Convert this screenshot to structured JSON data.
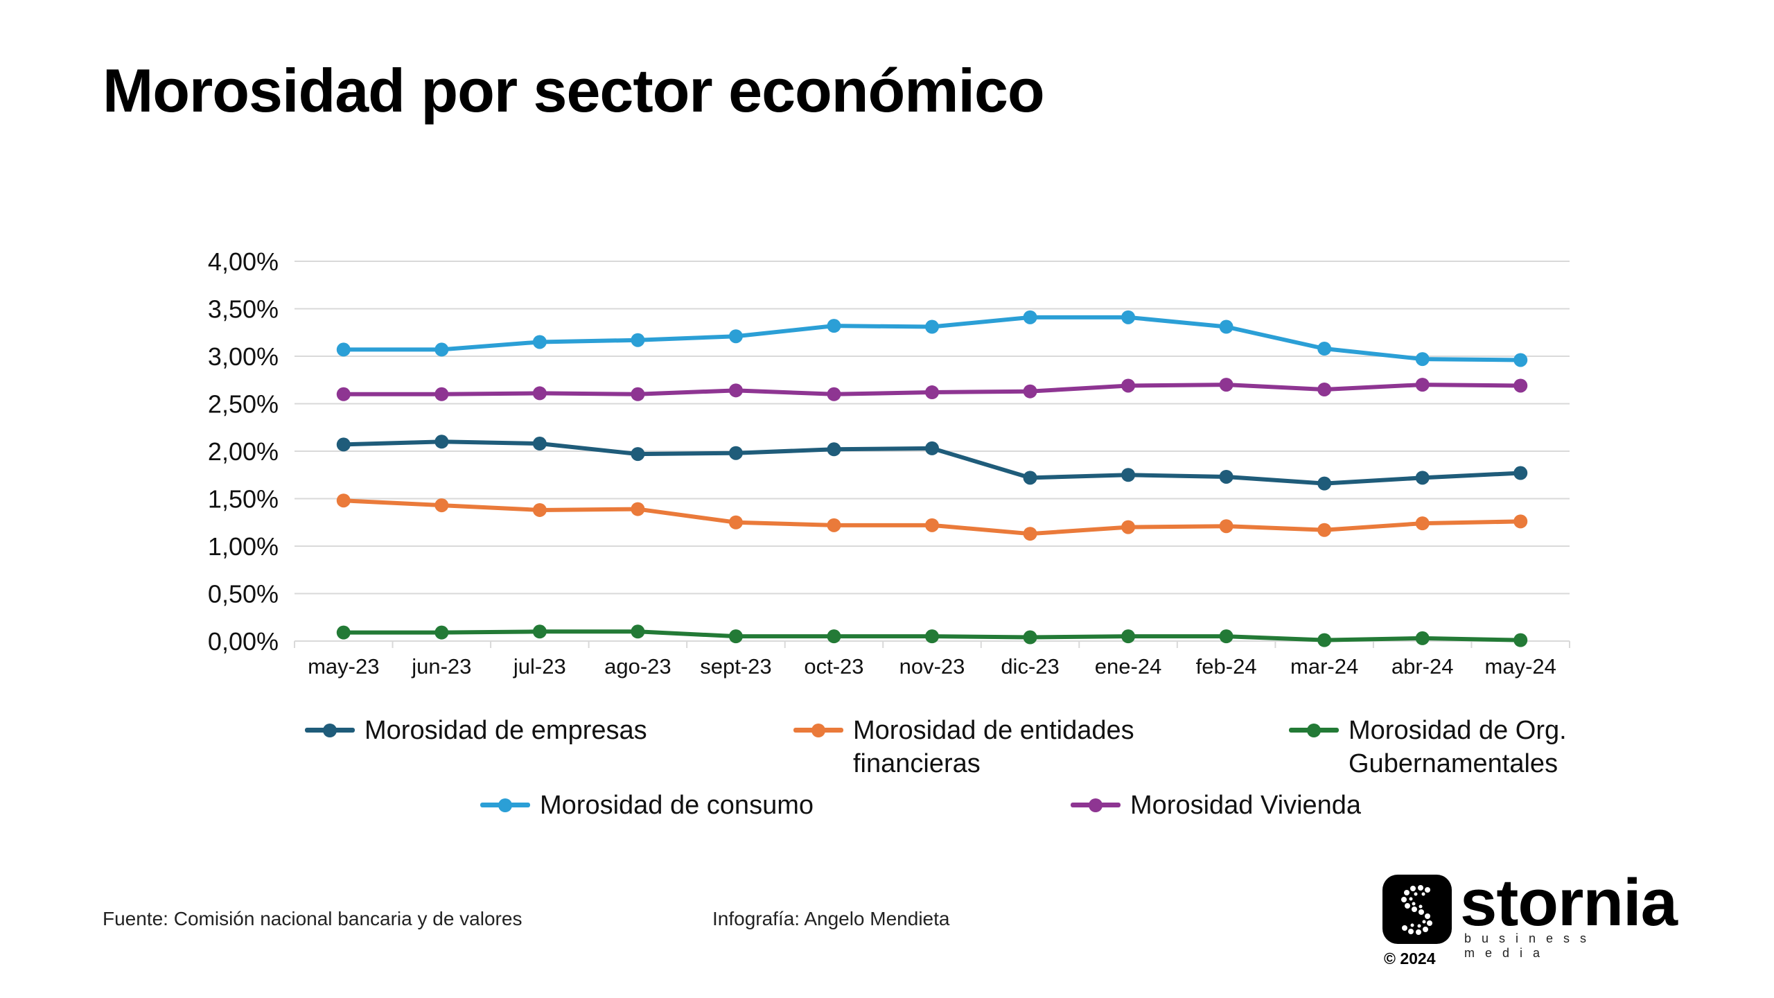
{
  "title": "Morosidad por sector económico",
  "chart_data": {
    "type": "line",
    "categories": [
      "may-23",
      "jun-23",
      "jul-23",
      "ago-23",
      "sept-23",
      "oct-23",
      "nov-23",
      "dic-23",
      "ene-24",
      "feb-24",
      "mar-24",
      "abr-24",
      "may-24"
    ],
    "ylim": [
      0,
      4
    ],
    "yticks": [
      "0,00%",
      "0,50%",
      "1,00%",
      "1,50%",
      "2,00%",
      "2,50%",
      "3,00%",
      "3,50%",
      "4,00%"
    ],
    "grid": true,
    "legend_position": "bottom",
    "series": [
      {
        "name": "Morosidad de empresas",
        "color": "#1f5c7a",
        "values": [
          2.07,
          2.1,
          2.08,
          1.97,
          1.98,
          2.02,
          2.03,
          1.72,
          1.75,
          1.73,
          1.66,
          1.72,
          1.77
        ]
      },
      {
        "name": "Morosidad de entidades financieras",
        "color": "#ea7a3a",
        "values": [
          1.48,
          1.43,
          1.38,
          1.39,
          1.25,
          1.22,
          1.22,
          1.13,
          1.2,
          1.21,
          1.17,
          1.24,
          1.26
        ]
      },
      {
        "name": "Morosidad de Org. Gubernamentales",
        "color": "#237a36",
        "values": [
          0.09,
          0.09,
          0.1,
          0.1,
          0.05,
          0.05,
          0.05,
          0.04,
          0.05,
          0.05,
          0.01,
          0.03,
          0.01
        ]
      },
      {
        "name": "Morosidad de consumo",
        "color": "#2b9fd6",
        "values": [
          3.07,
          3.07,
          3.15,
          3.17,
          3.21,
          3.32,
          3.31,
          3.41,
          3.41,
          3.31,
          3.08,
          2.97,
          2.96
        ]
      },
      {
        "name": "Morosidad Vivienda",
        "color": "#8e3592",
        "values": [
          2.6,
          2.6,
          2.61,
          2.6,
          2.64,
          2.6,
          2.62,
          2.63,
          2.69,
          2.7,
          2.65,
          2.7,
          2.69
        ]
      }
    ]
  },
  "legend": {
    "empresas": "Morosidad de empresas",
    "financieras_line1": "Morosidad de entidades",
    "financieras_line2": "financieras",
    "gubernamentales_line1": "Morosidad de Org.",
    "gubernamentales_line2": "Gubernamentales",
    "consumo": "Morosidad de consumo",
    "vivienda": "Morosidad Vivienda"
  },
  "colors": {
    "empresas": "#1f5c7a",
    "financieras": "#ea7a3a",
    "gubernamentales": "#237a36",
    "consumo": "#2b9fd6",
    "vivienda": "#8e3592",
    "grid": "#d9d9d9"
  },
  "footer": {
    "source": "Fuente: Comisión nacional bancaria y de valores",
    "credit": "Infografía: Angelo Mendieta"
  },
  "logo": {
    "icon": "stornia-logo-icon",
    "wordmark": "stornia",
    "tagline": "business media",
    "copyright": "© 2024"
  }
}
